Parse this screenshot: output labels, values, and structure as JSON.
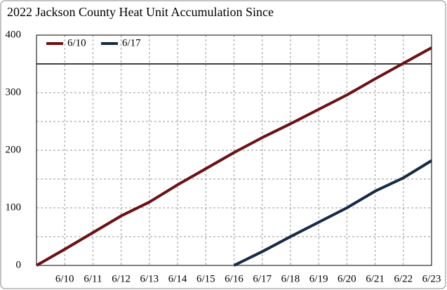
{
  "chart_data": {
    "type": "line",
    "title": "2022 Jackson County Heat Unit Accumulation Since",
    "categories": [
      null,
      "6/10",
      "6/11",
      "6/12",
      "6/13",
      "6/14",
      "6/15",
      "6/16",
      "6/17",
      "6/18",
      "6/19",
      "6/20",
      "6/21",
      "6/22",
      "6/23"
    ],
    "series": [
      {
        "name": "6/10",
        "color": "#6a1214",
        "values": [
          0,
          28,
          57,
          86,
          110,
          140,
          168,
          196,
          222,
          246,
          271,
          296,
          324,
          351,
          378
        ]
      },
      {
        "name": "6/17",
        "color": "#172b45",
        "values": [
          null,
          null,
          null,
          null,
          null,
          null,
          null,
          0,
          24,
          50,
          75,
          100,
          129,
          152,
          182
        ]
      }
    ],
    "ylim": [
      0,
      400
    ],
    "yticks": [
      0,
      100,
      200,
      300,
      400
    ],
    "minor_yticks": [
      50,
      150,
      250
    ],
    "reference_line": 350,
    "grid": true,
    "legend": "upper left"
  }
}
